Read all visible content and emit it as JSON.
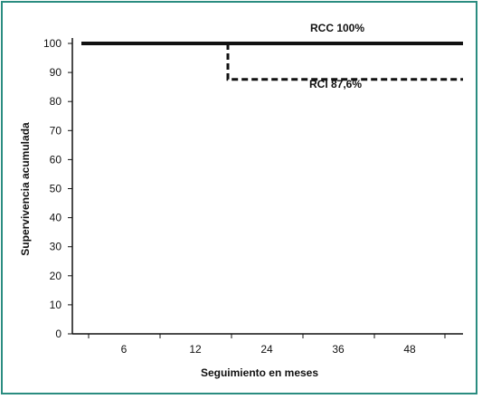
{
  "colors": {
    "frame": "#2a8c80",
    "axis": "#111111",
    "line": "#111111"
  },
  "chart_data": {
    "type": "line",
    "title": "",
    "xlabel": "Seguimiento en meses",
    "ylabel": "Supervivencia acumulada",
    "ylim": [
      0,
      100
    ],
    "y_ticks": [
      0,
      10,
      20,
      30,
      40,
      50,
      60,
      70,
      80,
      90,
      100
    ],
    "x_ticks": [
      "6",
      "12",
      "24",
      "36",
      "48"
    ],
    "grid": false,
    "legend": "none",
    "series": [
      {
        "name": "RCC 100%",
        "style": "solid",
        "points": [
          [
            0,
            100
          ],
          [
            5,
            100
          ]
        ]
      },
      {
        "name": "RCI 87,6%",
        "style": "dashed",
        "points": [
          [
            2,
            100
          ],
          [
            2,
            87.6
          ],
          [
            5,
            87.6
          ]
        ]
      }
    ]
  }
}
